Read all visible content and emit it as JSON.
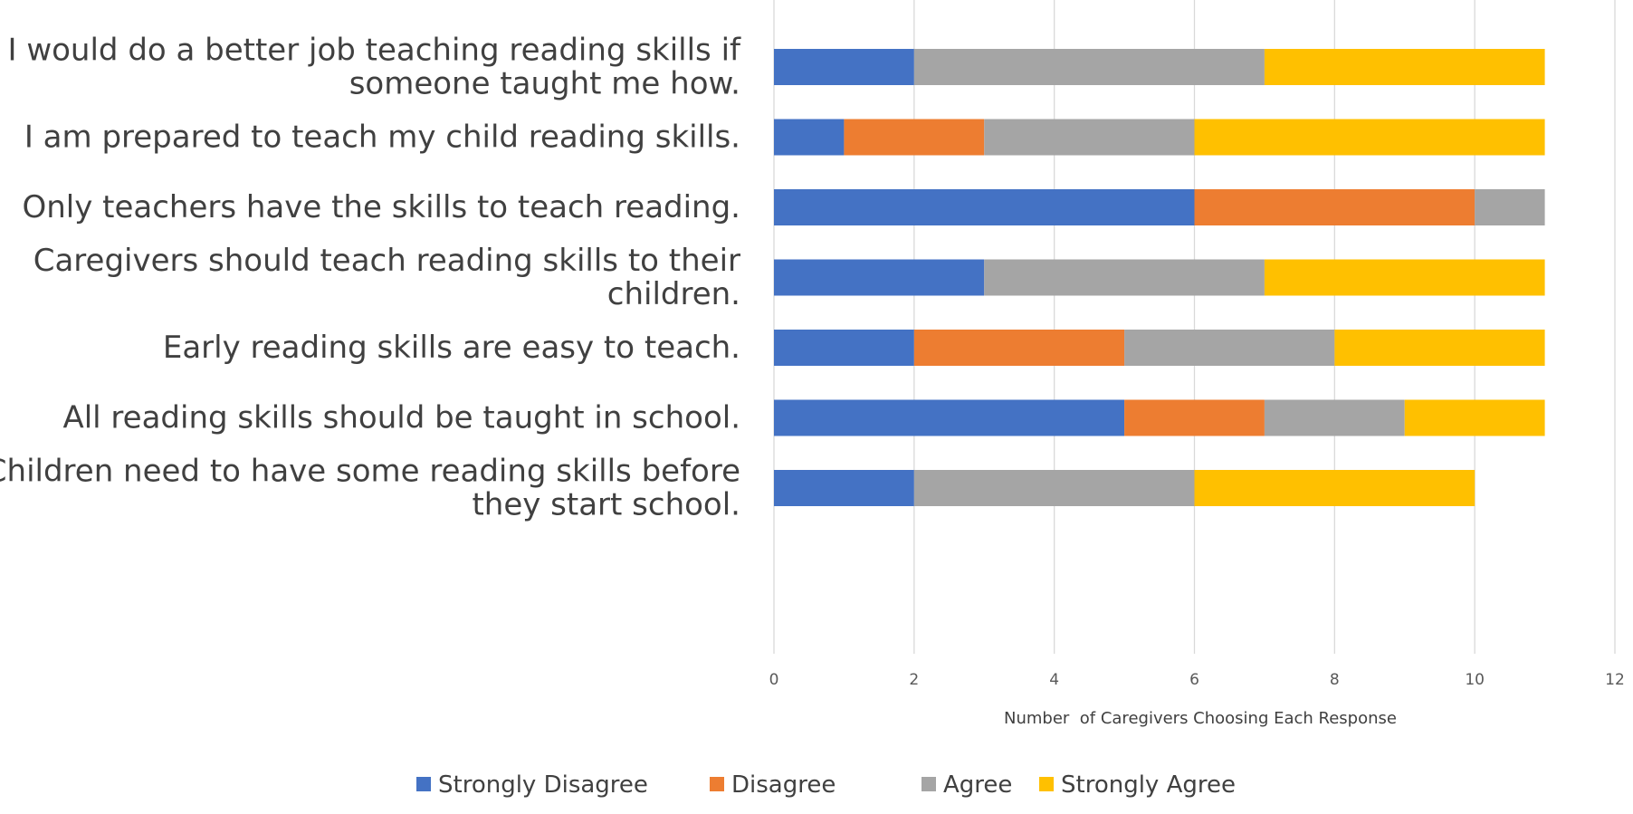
{
  "chart_data": {
    "type": "bar",
    "orientation": "horizontal",
    "stacked": true,
    "categories": [
      [
        "I would do a better job teaching reading skills if",
        "someone taught me how."
      ],
      [
        "I am prepared to teach my child reading skills."
      ],
      [
        "Only teachers have the skills to teach reading."
      ],
      [
        "Caregivers should teach reading skills to their",
        "children."
      ],
      [
        "Early reading skills are easy to teach."
      ],
      [
        "All reading skills should be taught in school."
      ],
      [
        "Children need to have some reading skills before",
        "they start school."
      ]
    ],
    "series": [
      {
        "name": "Strongly Disagree",
        "color": "#4472C4",
        "values": [
          2,
          1,
          6,
          3,
          2,
          5,
          2
        ]
      },
      {
        "name": "Disagree",
        "color": "#ED7D31",
        "values": [
          0,
          2,
          4,
          0,
          3,
          2,
          0
        ]
      },
      {
        "name": "Agree",
        "color": "#A5A5A5",
        "values": [
          5,
          3,
          1,
          4,
          3,
          2,
          4
        ]
      },
      {
        "name": "Strongly Agree",
        "color": "#FFC000",
        "values": [
          4,
          5,
          0,
          4,
          3,
          2,
          4
        ]
      }
    ],
    "xlim": [
      0,
      12
    ],
    "xticks": [
      "0",
      "2",
      "4",
      "6",
      "8",
      "10",
      "12"
    ],
    "xlabel": "Number  of Caregivers Choosing Each Response",
    "grid": true,
    "legend_position": "bottom"
  }
}
